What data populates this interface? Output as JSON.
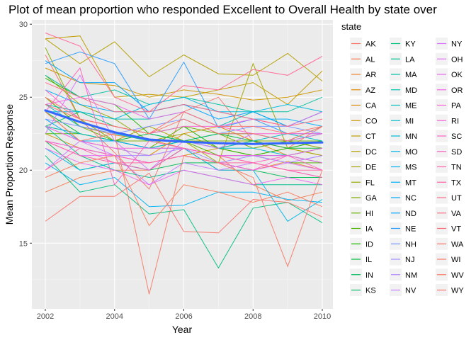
{
  "chart_data": {
    "type": "line",
    "title": "Plot of mean proportion who responded Excellent to Overall Health by state over",
    "xlabel": "Year",
    "ylabel": "Mean Proportion Response",
    "xlim": [
      2002,
      2010
    ],
    "ylim": [
      10.5,
      30.3
    ],
    "x_ticks": [
      2002,
      2004,
      2006,
      2008,
      2010
    ],
    "y_ticks": [
      15,
      20,
      25,
      30
    ],
    "grid": true,
    "legend_title": "state",
    "legend_position": "right",
    "x": [
      2002,
      2003,
      2004,
      2005,
      2006,
      2007,
      2008,
      2009,
      2010
    ],
    "smooth": {
      "name": "smooth",
      "color": "#3366FF",
      "values": [
        24.1,
        23.3,
        22.6,
        22.1,
        21.95,
        21.85,
        21.8,
        21.85,
        21.9
      ]
    },
    "series": [
      {
        "name": "AK",
        "color": "#F8766D",
        "values": [
          27.9,
          23.5,
          21.2,
          18.7,
          24.0,
          25.0,
          22.0,
          21.5,
          23.0
        ]
      },
      {
        "name": "AL",
        "color": "#F27D52",
        "values": [
          18.5,
          19.5,
          20.0,
          20.0,
          21.5,
          21.0,
          19.0,
          17.9,
          18.5
        ]
      },
      {
        "name": "AR",
        "color": "#EA8331",
        "values": [
          25.0,
          23.0,
          22.4,
          22.1,
          21.5,
          20.0,
          20.0,
          20.6,
          20.0
        ]
      },
      {
        "name": "AZ",
        "color": "#E18A00",
        "values": [
          24.0,
          22.0,
          21.5,
          21.0,
          22.5,
          23.0,
          22.0,
          21.0,
          21.5
        ]
      },
      {
        "name": "CA",
        "color": "#D89000",
        "values": [
          22.5,
          21.5,
          21.0,
          20.5,
          21.0,
          21.5,
          21.0,
          21.5,
          21.0
        ]
      },
      {
        "name": "CO",
        "color": "#CD9600",
        "values": [
          27.0,
          26.0,
          25.8,
          25.0,
          25.5,
          25.2,
          24.8,
          25.0,
          25.5
        ]
      },
      {
        "name": "CT",
        "color": "#C19C00",
        "values": [
          29.0,
          29.2,
          25.0,
          25.2,
          25.0,
          25.5,
          26.0,
          24.5,
          26.8
        ]
      },
      {
        "name": "DC",
        "color": "#B4A000",
        "values": [
          29.0,
          27.3,
          28.8,
          26.4,
          27.9,
          26.6,
          26.5,
          28.0,
          26.1
        ]
      },
      {
        "name": "DE",
        "color": "#A5A500",
        "values": [
          23.0,
          22.5,
          22.0,
          23.0,
          22.0,
          20.5,
          27.3,
          21.5,
          21.0
        ]
      },
      {
        "name": "FL",
        "color": "#95A900",
        "values": [
          26.5,
          24.5,
          23.5,
          22.0,
          22.5,
          21.5,
          22.0,
          22.0,
          21.5
        ]
      },
      {
        "name": "GA",
        "color": "#82AD00",
        "values": [
          28.4,
          23.5,
          22.0,
          22.0,
          22.0,
          22.0,
          22.0,
          22.0,
          22.5
        ]
      },
      {
        "name": "HI",
        "color": "#6BB100",
        "values": [
          25.0,
          23.0,
          22.0,
          21.5,
          23.0,
          22.5,
          21.5,
          22.0,
          22.0
        ]
      },
      {
        "name": "IA",
        "color": "#4FB400",
        "values": [
          22.5,
          22.5,
          22.0,
          21.5,
          22.0,
          21.0,
          21.0,
          20.5,
          20.5
        ]
      },
      {
        "name": "ID",
        "color": "#1CB700",
        "values": [
          26.3,
          25.0,
          24.5,
          22.5,
          23.0,
          21.5,
          21.0,
          21.5,
          22.0
        ]
      },
      {
        "name": "IL",
        "color": "#00BA38",
        "values": [
          24.0,
          22.5,
          22.0,
          22.5,
          22.0,
          22.5,
          22.0,
          21.5,
          21.5
        ]
      },
      {
        "name": "IN",
        "color": "#00BC56",
        "values": [
          22.0,
          20.0,
          20.5,
          20.0,
          20.5,
          20.5,
          20.0,
          19.5,
          19.5
        ]
      },
      {
        "name": "KS",
        "color": "#00BE6C",
        "values": [
          23.0,
          24.0,
          23.0,
          22.5,
          22.0,
          22.5,
          22.5,
          22.0,
          23.0
        ]
      },
      {
        "name": "KY",
        "color": "#00BF7F",
        "values": [
          21.0,
          18.5,
          19.0,
          17.0,
          17.3,
          13.3,
          17.4,
          17.8,
          16.4
        ]
      },
      {
        "name": "LA",
        "color": "#00C091",
        "values": [
          23.0,
          21.0,
          20.0,
          19.5,
          20.0,
          19.5,
          19.0,
          19.0,
          19.0
        ]
      },
      {
        "name": "MA",
        "color": "#00C0A2",
        "values": [
          26.5,
          25.0,
          25.5,
          24.5,
          25.0,
          24.5,
          24.0,
          24.0,
          25.0
        ]
      },
      {
        "name": "MD",
        "color": "#00C0B2",
        "values": [
          24.5,
          24.0,
          23.5,
          23.5,
          24.0,
          23.0,
          24.0,
          23.0,
          24.0
        ]
      },
      {
        "name": "ME",
        "color": "#00BFC2",
        "values": [
          24.5,
          23.0,
          22.5,
          22.0,
          22.0,
          21.5,
          22.0,
          22.5,
          22.0
        ]
      },
      {
        "name": "MI",
        "color": "#00BDD0",
        "values": [
          23.0,
          22.5,
          22.0,
          21.5,
          22.0,
          21.5,
          21.5,
          21.0,
          21.5
        ]
      },
      {
        "name": "MN",
        "color": "#00BBDD",
        "values": [
          24.0,
          24.0,
          23.5,
          24.5,
          25.0,
          24.0,
          24.0,
          24.5,
          24.0
        ]
      },
      {
        "name": "MO",
        "color": "#00B7E9",
        "values": [
          21.5,
          20.0,
          20.5,
          20.0,
          21.5,
          20.0,
          20.0,
          16.5,
          18.0
        ]
      },
      {
        "name": "MS",
        "color": "#00B3F3",
        "values": [
          20.5,
          19.0,
          19.5,
          17.5,
          17.6,
          18.5,
          18.5,
          18.0,
          17.8
        ]
      },
      {
        "name": "MT",
        "color": "#00AEFA",
        "values": [
          25.5,
          24.5,
          24.0,
          24.0,
          24.5,
          24.0,
          23.5,
          23.5,
          23.0
        ]
      },
      {
        "name": "NC",
        "color": "#00A9FF",
        "values": [
          23.5,
          22.0,
          22.0,
          21.5,
          21.5,
          21.0,
          21.0,
          21.0,
          20.5
        ]
      },
      {
        "name": "ND",
        "color": "#00A3FF",
        "values": [
          27.5,
          26.0,
          26.0,
          24.0,
          24.5,
          23.5,
          24.0,
          23.0,
          24.0
        ]
      },
      {
        "name": "NE",
        "color": "#2B9CFF",
        "values": [
          27.3,
          28.1,
          27.3,
          23.5,
          27.4,
          22.9,
          23.5,
          22.5,
          22.5
        ]
      },
      {
        "name": "NH",
        "color": "#7C95FF",
        "values": [
          23.5,
          23.0,
          22.5,
          23.0,
          23.5,
          22.5,
          23.0,
          23.0,
          22.5
        ]
      },
      {
        "name": "NJ",
        "color": "#9E8EFF",
        "values": [
          22.0,
          21.5,
          21.0,
          21.0,
          21.5,
          20.5,
          21.0,
          20.5,
          21.0
        ]
      },
      {
        "name": "NM",
        "color": "#B586FF",
        "values": [
          23.0,
          22.0,
          21.5,
          21.0,
          21.5,
          21.0,
          21.0,
          20.5,
          21.0
        ]
      },
      {
        "name": "NV",
        "color": "#C77DFF",
        "values": [
          20.0,
          22.0,
          21.0,
          19.0,
          20.5,
          20.0,
          20.5,
          20.0,
          19.5
        ]
      },
      {
        "name": "NY",
        "color": "#D575FE",
        "values": [
          22.5,
          26.5,
          22.0,
          20.0,
          22.0,
          21.5,
          22.5,
          22.0,
          22.5
        ]
      },
      {
        "name": "OH",
        "color": "#E16FF8",
        "values": [
          22.0,
          21.0,
          21.0,
          20.5,
          21.0,
          20.5,
          20.0,
          20.5,
          20.0
        ]
      },
      {
        "name": "OK",
        "color": "#EA6AF1",
        "values": [
          21.5,
          20.5,
          20.0,
          19.0,
          20.0,
          19.5,
          19.0,
          19.5,
          19.0
        ]
      },
      {
        "name": "OR",
        "color": "#F166E8",
        "values": [
          24.5,
          25.0,
          24.5,
          23.5,
          24.0,
          23.0,
          23.5,
          23.0,
          24.0
        ]
      },
      {
        "name": "PA",
        "color": "#F763DE",
        "values": [
          23.0,
          22.0,
          21.5,
          21.5,
          21.5,
          21.0,
          21.0,
          21.0,
          21.5
        ]
      },
      {
        "name": "RI",
        "color": "#FB61D4",
        "values": [
          25.5,
          23.5,
          23.0,
          22.5,
          23.0,
          23.0,
          22.5,
          22.5,
          22.5
        ]
      },
      {
        "name": "SC",
        "color": "#FE61C9",
        "values": [
          22.0,
          21.5,
          21.0,
          20.5,
          21.0,
          20.5,
          20.0,
          21.0,
          20.5
        ]
      },
      {
        "name": "SD",
        "color": "#FF61BC",
        "values": [
          24.0,
          27.0,
          19.0,
          22.0,
          21.5,
          21.0,
          20.5,
          21.0,
          20.0
        ]
      },
      {
        "name": "TN",
        "color": "#FF62AF",
        "values": [
          20.0,
          21.5,
          20.5,
          20.0,
          21.5,
          21.0,
          20.5,
          20.0,
          19.5
        ]
      },
      {
        "name": "TX",
        "color": "#FF65A2",
        "values": [
          22.0,
          21.0,
          20.5,
          20.5,
          21.0,
          20.5,
          20.5,
          20.0,
          20.0
        ]
      },
      {
        "name": "UT",
        "color": "#FF6893",
        "values": [
          29.4,
          28.5,
          25.0,
          24.0,
          25.8,
          25.5,
          26.9,
          26.5,
          27.8
        ]
      },
      {
        "name": "VA",
        "color": "#FE6C84",
        "values": [
          26.0,
          25.0,
          24.0,
          24.0,
          24.5,
          24.0,
          23.5,
          23.0,
          23.5
        ]
      },
      {
        "name": "VT",
        "color": "#FB7074",
        "values": [
          25.0,
          23.5,
          23.0,
          22.5,
          24.0,
          23.0,
          23.0,
          22.5,
          23.0
        ]
      },
      {
        "name": "WA",
        "color": "#F8766D",
        "values": [
          24.5,
          23.5,
          23.0,
          22.5,
          23.5,
          22.5,
          22.5,
          22.0,
          23.0
        ]
      },
      {
        "name": "WI",
        "color": "#F77C68",
        "values": [
          24.0,
          22.0,
          22.5,
          11.5,
          21.0,
          20.5,
          19.5,
          13.4,
          20.0
        ]
      },
      {
        "name": "WV",
        "color": "#F87E60",
        "values": [
          19.5,
          20.5,
          21.0,
          16.2,
          19.0,
          18.5,
          17.8,
          18.5,
          17.5
        ]
      },
      {
        "name": "WY",
        "color": "#F8766D",
        "values": [
          16.5,
          18.2,
          18.2,
          19.8,
          15.8,
          15.7,
          18.0,
          17.8,
          16.8
        ]
      }
    ]
  }
}
